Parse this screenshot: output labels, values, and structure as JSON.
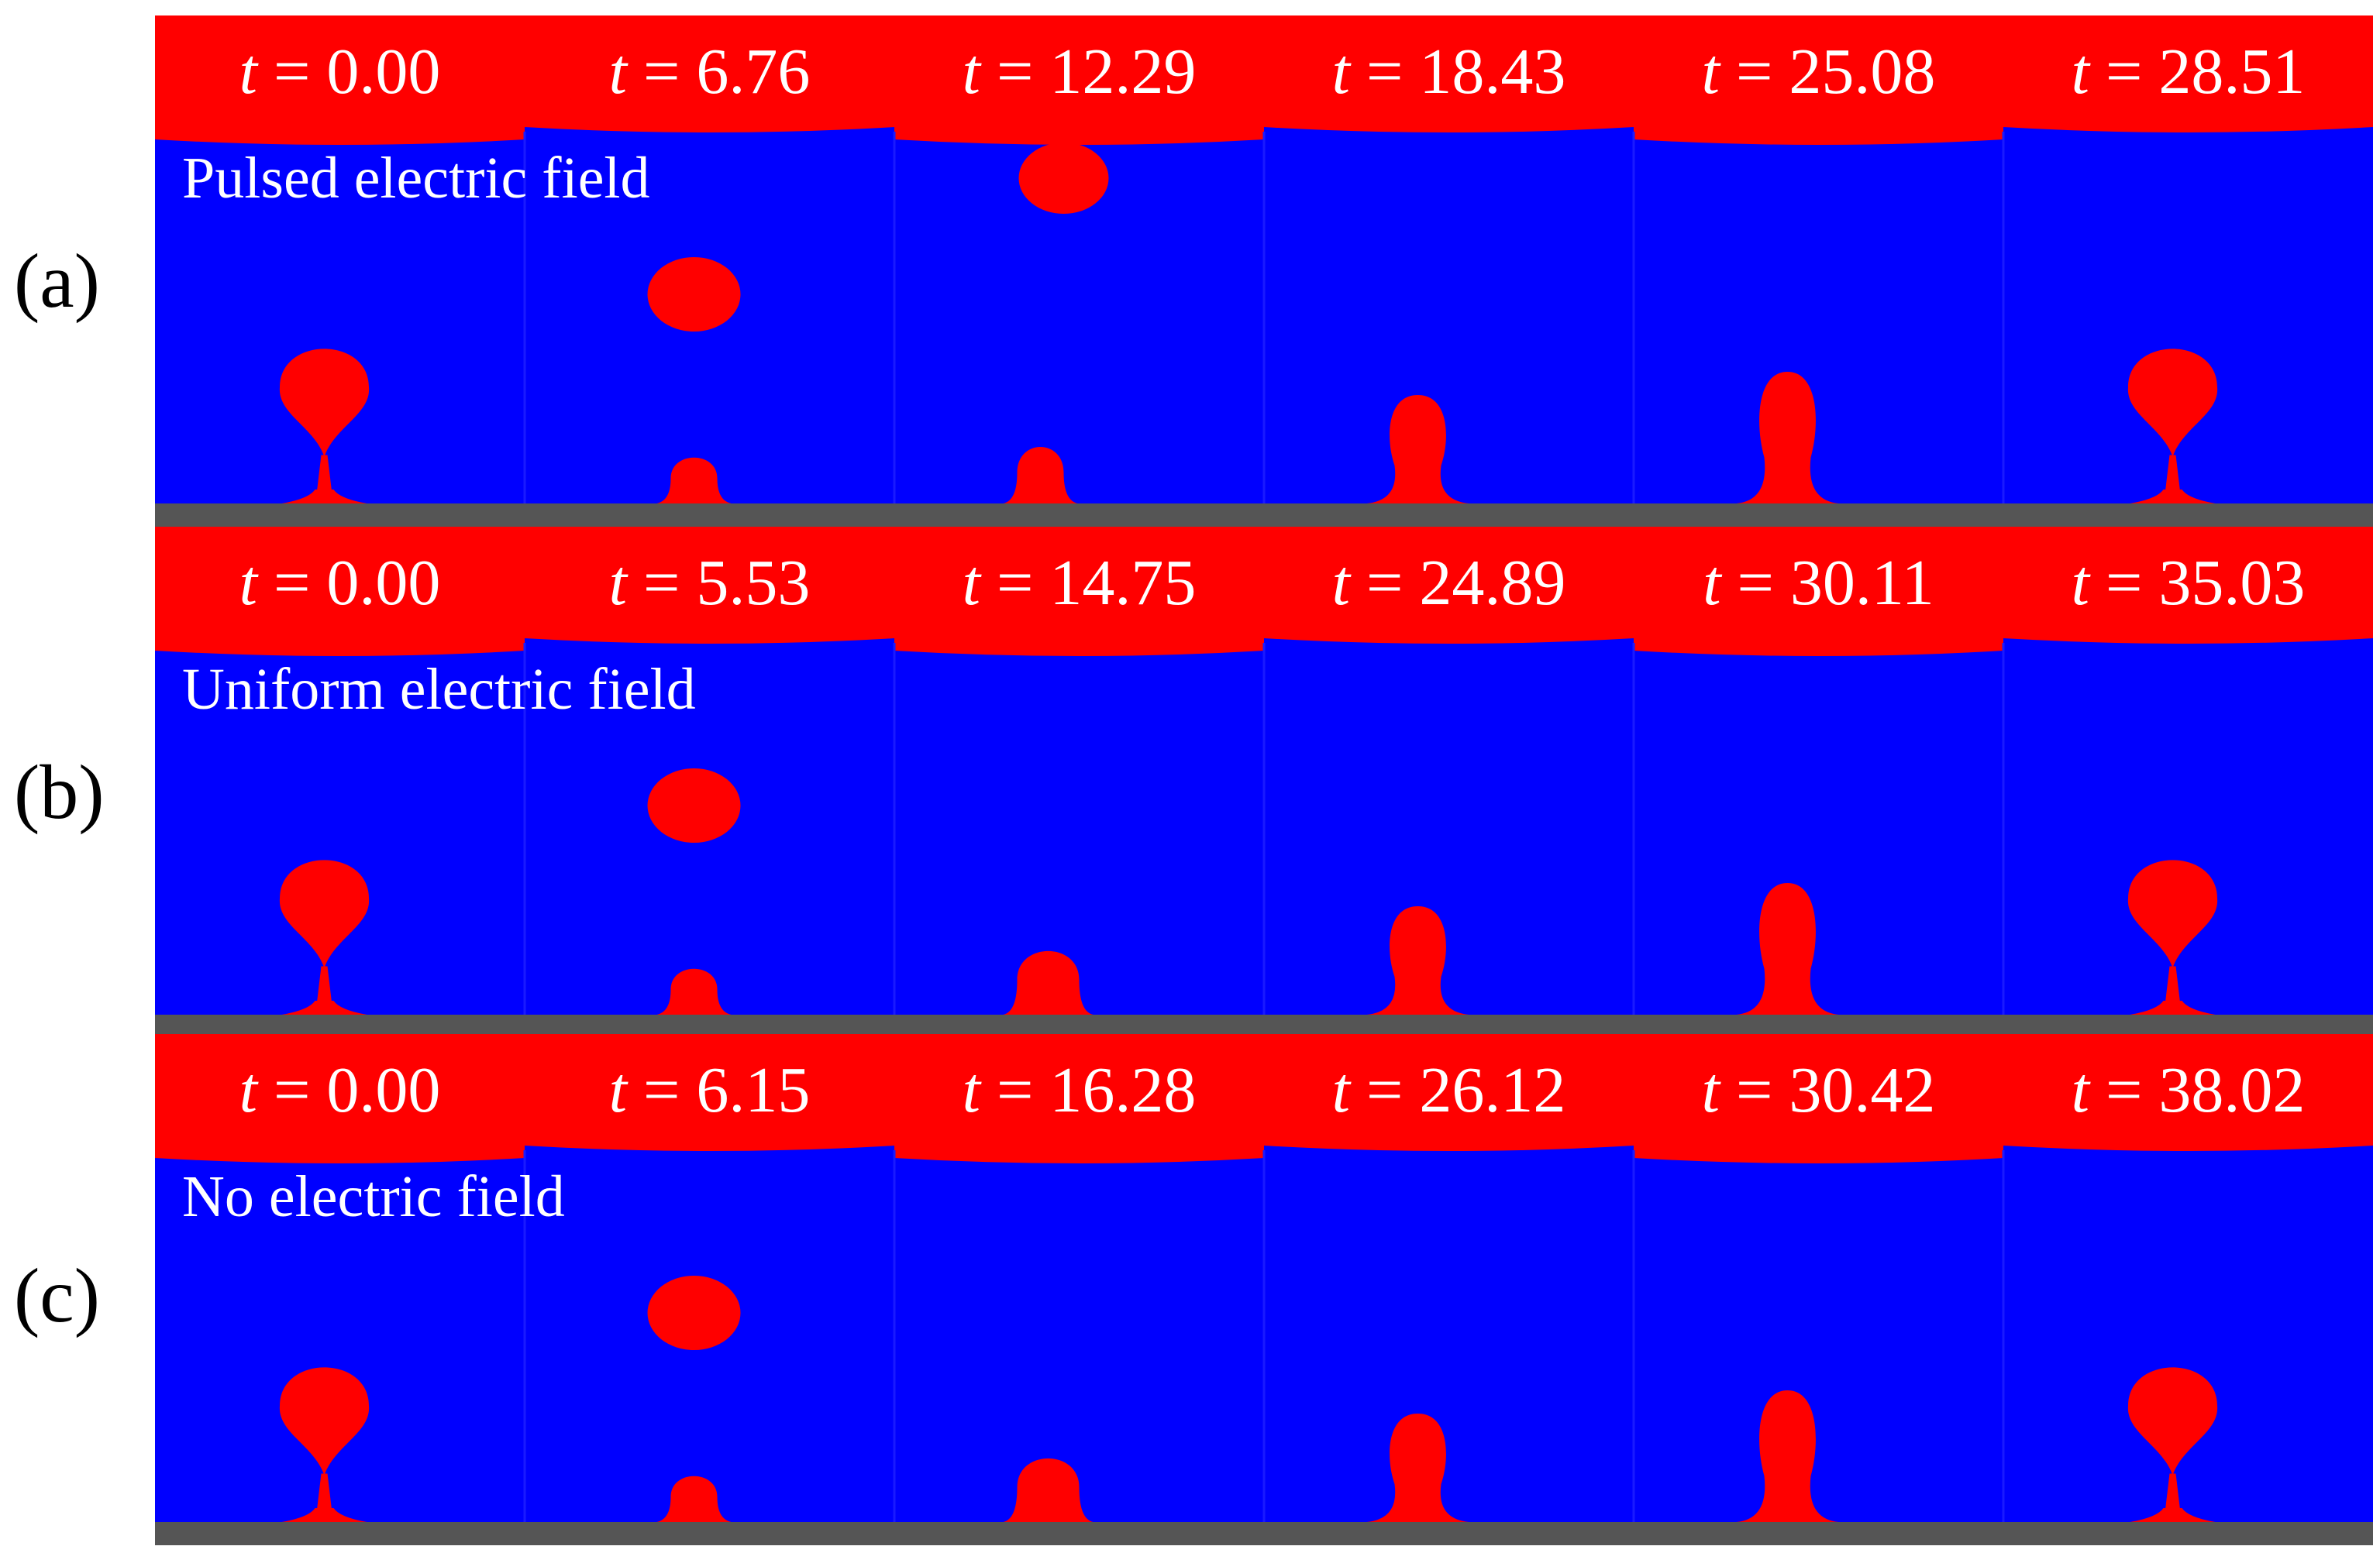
{
  "colors": {
    "fluid_outer": "#0000ff",
    "fluid_drop": "#ff0000",
    "substrate": "#555555",
    "label_text": "#ffffff",
    "panel_letter": "#000000"
  },
  "rows": [
    {
      "panel": "(a)",
      "field_label": "Pulsed electric field",
      "frames": [
        {
          "t_var": "t",
          "t_value": "= 0.00",
          "shape": "drop-necked"
        },
        {
          "t_var": "t",
          "t_value": "= 6.76",
          "shape": "bump-with-satellite"
        },
        {
          "t_var": "t",
          "t_value": "= 12.29",
          "shape": "bump-with-high-satellite"
        },
        {
          "t_var": "t",
          "t_value": "= 18.43",
          "shape": "column"
        },
        {
          "t_var": "t",
          "t_value": "= 25.08",
          "shape": "tall-column"
        },
        {
          "t_var": "t",
          "t_value": "= 28.51",
          "shape": "drop-necked"
        }
      ]
    },
    {
      "panel": "(b)",
      "field_label": "Uniform electric field",
      "frames": [
        {
          "t_var": "t",
          "t_value": "= 0.00",
          "shape": "drop-necked"
        },
        {
          "t_var": "t",
          "t_value": "= 5.53",
          "shape": "bump-with-satellite"
        },
        {
          "t_var": "t",
          "t_value": "= 14.75",
          "shape": "wide-bump"
        },
        {
          "t_var": "t",
          "t_value": "= 24.89",
          "shape": "column"
        },
        {
          "t_var": "t",
          "t_value": "= 30.11",
          "shape": "tall-column"
        },
        {
          "t_var": "t",
          "t_value": "= 35.03",
          "shape": "drop-necked"
        }
      ]
    },
    {
      "panel": "(c)",
      "field_label": "No electric field",
      "frames": [
        {
          "t_var": "t",
          "t_value": "= 0.00",
          "shape": "drop-necked"
        },
        {
          "t_var": "t",
          "t_value": "= 6.15",
          "shape": "bump-with-satellite"
        },
        {
          "t_var": "t",
          "t_value": "= 16.28",
          "shape": "wide-bump"
        },
        {
          "t_var": "t",
          "t_value": "= 26.12",
          "shape": "column"
        },
        {
          "t_var": "t",
          "t_value": "= 30.42",
          "shape": "tall-column"
        },
        {
          "t_var": "t",
          "t_value": "= 38.02",
          "shape": "drop-necked"
        }
      ]
    }
  ]
}
